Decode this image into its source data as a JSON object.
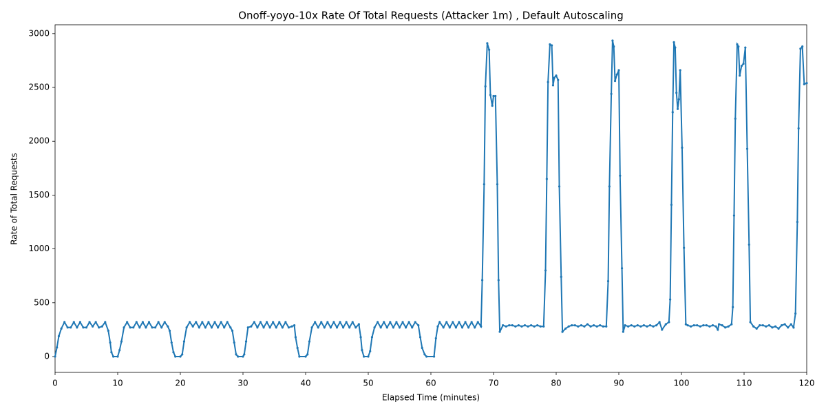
{
  "chart_data": {
    "type": "line",
    "title": "Onoff-yoyo-10x Rate Of Total Requests (Attacker 1m) , Default Autoscaling",
    "xlabel": "Elapsed Time (minutes)",
    "ylabel": "Rate of Total Requests",
    "color": "#1f77b4",
    "xlim": [
      0,
      120
    ],
    "xticks": [
      0,
      10,
      20,
      30,
      40,
      50,
      60,
      70,
      80,
      90,
      100,
      110,
      120
    ],
    "ylim": [
      -147,
      3082
    ],
    "yticks": [
      0,
      500,
      1000,
      1500,
      2000,
      2500,
      3000
    ],
    "x": [
      0,
      0.3,
      0.6,
      1,
      1.5,
      2,
      2.5,
      3,
      3.5,
      4,
      4.5,
      5,
      5.5,
      6,
      6.5,
      7,
      7.5,
      8,
      8.5,
      8.8,
      9,
      9.3,
      10,
      10.3,
      10.6,
      11,
      11.5,
      12,
      12.5,
      13,
      13.5,
      14,
      14.5,
      15,
      15.5,
      16,
      16.5,
      17,
      17.5,
      18,
      18.3,
      18.6,
      18.9,
      19.2,
      20,
      20.3,
      20.6,
      21,
      21.5,
      22,
      22.5,
      23,
      23.5,
      24,
      24.5,
      25,
      25.5,
      26,
      26.5,
      27,
      27.5,
      28,
      28.3,
      28.6,
      28.9,
      29.2,
      30,
      30.2,
      30.5,
      30.8,
      31.3,
      31.8,
      32.3,
      32.8,
      33.3,
      33.8,
      34.3,
      34.8,
      35.3,
      35.8,
      36.3,
      36.8,
      37.3,
      37.8,
      38.2,
      38.4,
      38.7,
      39,
      40,
      40.3,
      40.6,
      41,
      41.5,
      42,
      42.5,
      43,
      43.5,
      44,
      44.5,
      45,
      45.5,
      46,
      46.5,
      47,
      47.5,
      48,
      48.5,
      48.8,
      49,
      49.3,
      50,
      50.3,
      50.6,
      51,
      51.5,
      52,
      52.5,
      53,
      53.5,
      54,
      54.5,
      55,
      55.5,
      56,
      56.5,
      57,
      57.5,
      58,
      58.3,
      58.6,
      59,
      59.3,
      60.5,
      60.8,
      61.1,
      61.4,
      62,
      62.5,
      63,
      63.5,
      64,
      64.5,
      65,
      65.5,
      66,
      66.5,
      67,
      67.5,
      68,
      68.2,
      68.5,
      68.7,
      69,
      69.3,
      69.5,
      69.8,
      70,
      70.3,
      70.6,
      70.8,
      71,
      71.5,
      72,
      72.5,
      73,
      73.5,
      74,
      74.5,
      75,
      75.5,
      76,
      76.5,
      77,
      77.5,
      78,
      78.3,
      78.5,
      78.7,
      79,
      79.3,
      79.5,
      79.7,
      80,
      80.3,
      80.5,
      80.8,
      81,
      81.5,
      82,
      82.5,
      83,
      83.5,
      84,
      84.5,
      85,
      85.5,
      86,
      86.5,
      87,
      87.5,
      88,
      88.3,
      88.5,
      88.8,
      89,
      89.2,
      89.4,
      89.7,
      90,
      90.2,
      90.5,
      90.7,
      91,
      91.5,
      92,
      92.5,
      93,
      93.5,
      94,
      94.5,
      95,
      95.5,
      96,
      96.5,
      96.9,
      97.5,
      98,
      98.2,
      98.4,
      98.6,
      98.8,
      99,
      99.2,
      99.4,
      99.6,
      99.8,
      100.1,
      100.4,
      100.7,
      101,
      101.5,
      102,
      102.5,
      103,
      103.5,
      104,
      104.5,
      105,
      105.5,
      105.8,
      106,
      106.5,
      107,
      107.5,
      108,
      108.2,
      108.4,
      108.6,
      108.9,
      109.1,
      109.3,
      109.6,
      109.9,
      110.2,
      110.5,
      110.8,
      111,
      111.5,
      112,
      112.5,
      113,
      113.5,
      114,
      114.5,
      115,
      115.5,
      116,
      116.5,
      117,
      117.5,
      117.9,
      118.2,
      118.5,
      118.7,
      119,
      119.3,
      119.6,
      120
    ],
    "values": [
      0,
      85,
      190,
      260,
      320,
      270,
      270,
      320,
      270,
      320,
      270,
      270,
      320,
      280,
      320,
      270,
      280,
      320,
      240,
      130,
      40,
      0,
      0,
      60,
      140,
      270,
      320,
      270,
      270,
      320,
      270,
      320,
      270,
      320,
      270,
      270,
      320,
      270,
      320,
      280,
      240,
      130,
      40,
      0,
      0,
      20,
      140,
      270,
      320,
      280,
      320,
      270,
      320,
      270,
      320,
      270,
      320,
      270,
      320,
      270,
      320,
      270,
      240,
      130,
      20,
      0,
      0,
      20,
      140,
      270,
      280,
      320,
      270,
      320,
      270,
      320,
      270,
      320,
      270,
      320,
      270,
      320,
      270,
      280,
      290,
      180,
      80,
      0,
      0,
      20,
      140,
      270,
      320,
      270,
      320,
      270,
      320,
      270,
      320,
      270,
      320,
      270,
      320,
      270,
      320,
      270,
      300,
      180,
      60,
      0,
      0,
      50,
      180,
      270,
      320,
      270,
      320,
      270,
      320,
      270,
      320,
      270,
      320,
      270,
      320,
      270,
      320,
      290,
      180,
      80,
      20,
      0,
      0,
      170,
      280,
      320,
      270,
      320,
      270,
      320,
      270,
      320,
      270,
      320,
      270,
      320,
      270,
      320,
      280,
      710,
      1600,
      2510,
      2910,
      2850,
      2430,
      2330,
      2420,
      2420,
      1600,
      710,
      230,
      290,
      280,
      290,
      290,
      280,
      290,
      280,
      290,
      280,
      290,
      280,
      290,
      280,
      280,
      800,
      1650,
      2550,
      2900,
      2890,
      2520,
      2590,
      2610,
      2570,
      1580,
      740,
      230,
      260,
      280,
      290,
      290,
      280,
      290,
      280,
      300,
      280,
      290,
      280,
      290,
      280,
      280,
      700,
      1580,
      2440,
      2935,
      2880,
      2560,
      2620,
      2660,
      1680,
      820,
      230,
      290,
      280,
      290,
      280,
      290,
      280,
      290,
      280,
      290,
      280,
      290,
      320,
      250,
      300,
      320,
      530,
      1410,
      2270,
      2920,
      2870,
      2450,
      2300,
      2390,
      2660,
      1940,
      1010,
      300,
      290,
      280,
      290,
      290,
      280,
      290,
      290,
      280,
      290,
      280,
      250,
      300,
      290,
      270,
      280,
      300,
      460,
      1310,
      2210,
      2900,
      2880,
      2610,
      2700,
      2720,
      2870,
      1930,
      1040,
      320,
      280,
      260,
      290,
      290,
      280,
      290,
      270,
      280,
      260,
      290,
      300,
      270,
      300,
      270,
      400,
      1250,
      2120,
      2860,
      2880,
      2530,
      2540
    ]
  }
}
